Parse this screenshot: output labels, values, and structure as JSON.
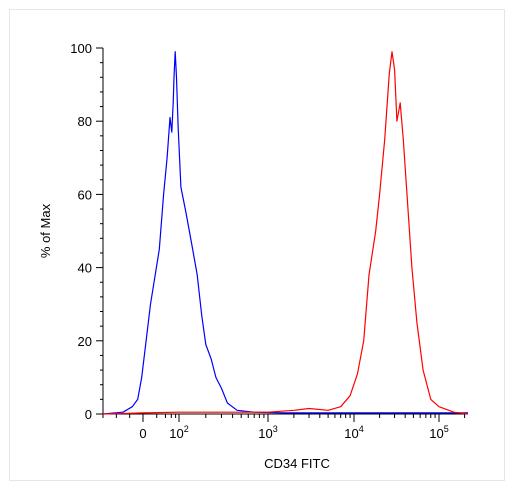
{
  "chart_data": {
    "type": "line",
    "title": "",
    "xlabel": "CD34 FITC",
    "ylabel": "% of Max",
    "x_scale": "logicle (biexponential)",
    "xlim": [
      -300,
      250000
    ],
    "ylim": [
      0,
      100
    ],
    "y_ticks": [
      0,
      20,
      40,
      60,
      80,
      100
    ],
    "x_ticks": [
      {
        "value": 0,
        "base": "0",
        "exp": ""
      },
      {
        "value": 100,
        "base": "10",
        "exp": "2"
      },
      {
        "value": 1000,
        "base": "10",
        "exp": "3"
      },
      {
        "value": 10000,
        "base": "10",
        "exp": "4"
      },
      {
        "value": 100000,
        "base": "10",
        "exp": "5"
      }
    ],
    "grid": false,
    "series": [
      {
        "color": "#0000ff",
        "x": [
          -300,
          -150,
          -80,
          -40,
          -10,
          10,
          25,
          35,
          45,
          55,
          62,
          68,
          72,
          78,
          85,
          95,
          105,
          120,
          140,
          160,
          180,
          200,
          230,
          260,
          300,
          350,
          450,
          700,
          1500,
          10000,
          250000
        ],
        "y": [
          0,
          0.5,
          2,
          4,
          10,
          30,
          45,
          60,
          70,
          81,
          77,
          85,
          92,
          99,
          92,
          78,
          62,
          55,
          46,
          38,
          27,
          19,
          15,
          10,
          7,
          3,
          1,
          0.5,
          0.3,
          0.3,
          0.3
        ]
      },
      {
        "color": "#ff0000",
        "x": [
          -300,
          0,
          100,
          1000,
          2000,
          3000,
          5000,
          7000,
          9000,
          11000,
          13000,
          15000,
          18000,
          20000,
          23000,
          26000,
          28000,
          30000,
          32000,
          35000,
          38000,
          42000,
          48000,
          55000,
          65000,
          80000,
          100000,
          150000,
          250000
        ],
        "y": [
          0,
          0.3,
          0.5,
          0.5,
          1,
          1.5,
          1,
          2,
          5,
          11,
          20,
          38,
          50,
          60,
          75,
          93,
          99,
          94,
          80,
          85,
          75,
          60,
          40,
          25,
          12,
          4,
          2,
          0.5,
          0
        ]
      }
    ]
  }
}
